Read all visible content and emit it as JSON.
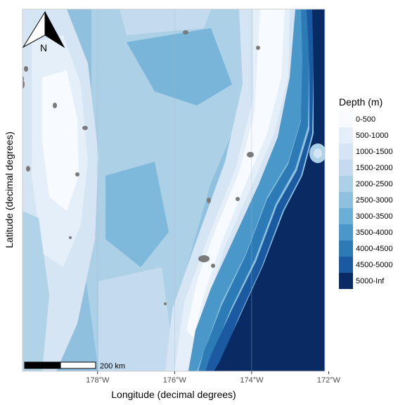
{
  "map": {
    "xlabel": "Longitude (decimal degrees)",
    "ylabel": "Latitude (decimal degrees)",
    "x_ticks": [
      {
        "value": -178,
        "label": "178°W"
      },
      {
        "value": -176,
        "label": "176°W"
      },
      {
        "value": -174,
        "label": "174°W"
      },
      {
        "value": -172,
        "label": "172°W"
      }
    ],
    "xlim": [
      -179.95,
      -172.1
    ],
    "legend": {
      "title": "Depth (m)",
      "placement": "right",
      "items": [
        {
          "label": "0-500",
          "color": "#f7fbff"
        },
        {
          "label": "500-1000",
          "color": "#e5eff9"
        },
        {
          "label": "1000-1500",
          "color": "#d5e5f4"
        },
        {
          "label": "1500-2000",
          "color": "#c4daee"
        },
        {
          "label": "2000-2500",
          "color": "#acd0e6"
        },
        {
          "label": "2500-3000",
          "color": "#8fc1de"
        },
        {
          "label": "3000-3500",
          "color": "#6baed6"
        },
        {
          "label": "3500-4000",
          "color": "#4a98c9"
        },
        {
          "label": "4000-4500",
          "color": "#2c7bb6"
        },
        {
          "label": "4500-5000",
          "color": "#1b5aa0"
        },
        {
          "label": "5000-Inf",
          "color": "#0a2a63"
        }
      ]
    },
    "scale_bar": {
      "label": "200 km"
    },
    "north_arrow": {
      "label": "N"
    },
    "land_color": "#7a7a7a"
  }
}
